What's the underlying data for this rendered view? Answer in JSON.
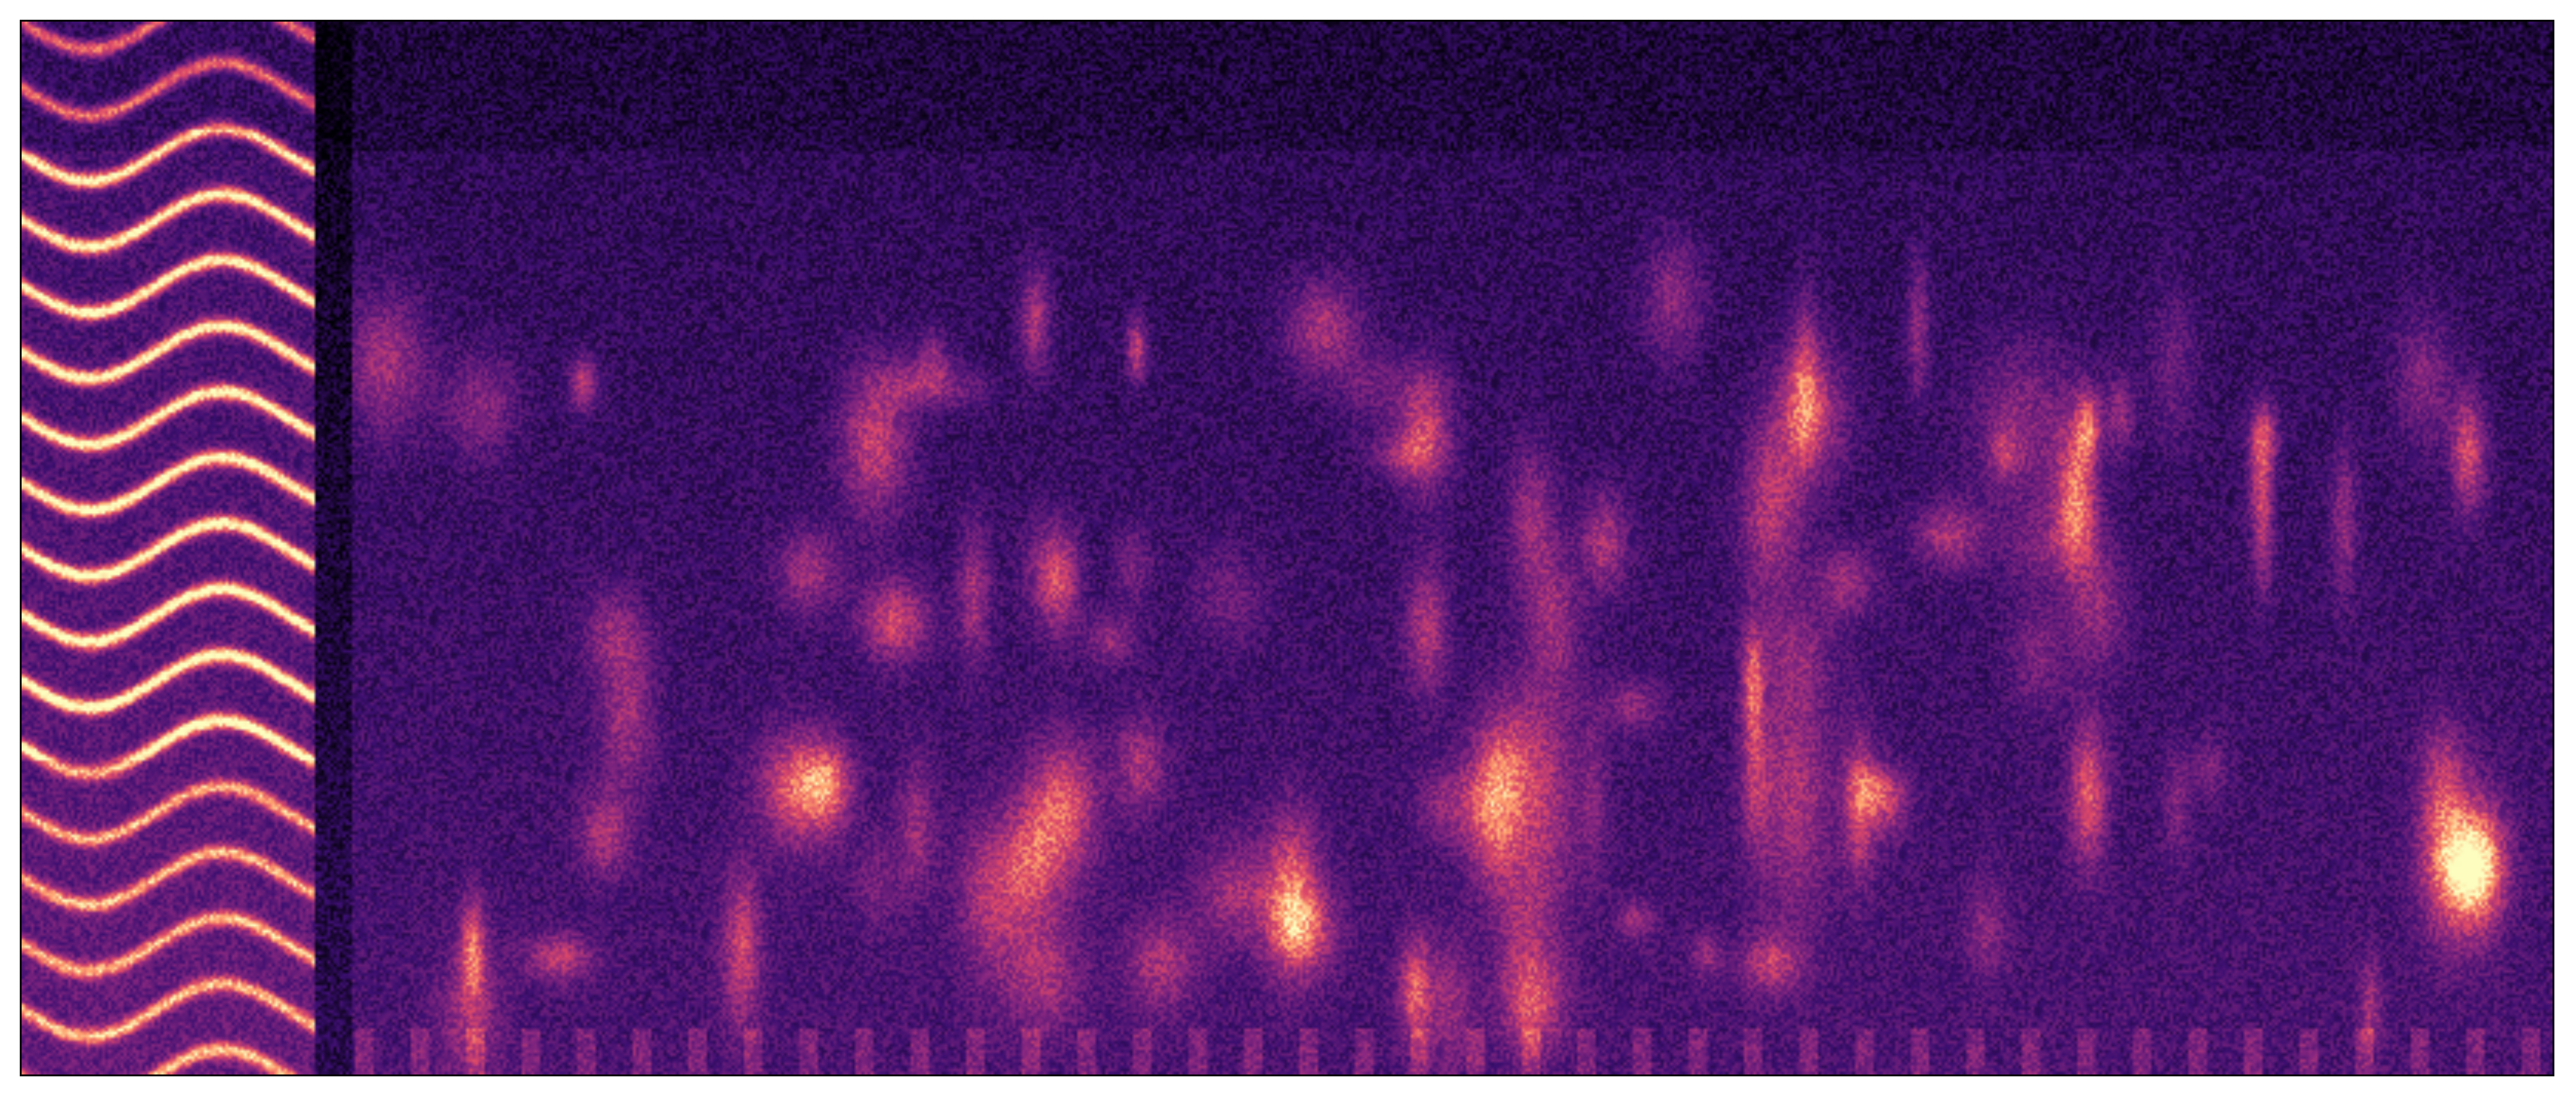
{
  "chart_data": {
    "type": "heatmap",
    "subtype": "spectrogram",
    "colormap": "magma",
    "title": "",
    "xlabel": "",
    "ylabel": "",
    "axes_ticks_visible": false,
    "grid": false,
    "legend": "none",
    "colors": {
      "low": "#000004",
      "mid_low": "#3b0f70",
      "mid": "#8c2981",
      "mid_high": "#de4968",
      "high": "#fe9f6d",
      "peak": "#fcfdbf",
      "frame": "#000000"
    }
  }
}
